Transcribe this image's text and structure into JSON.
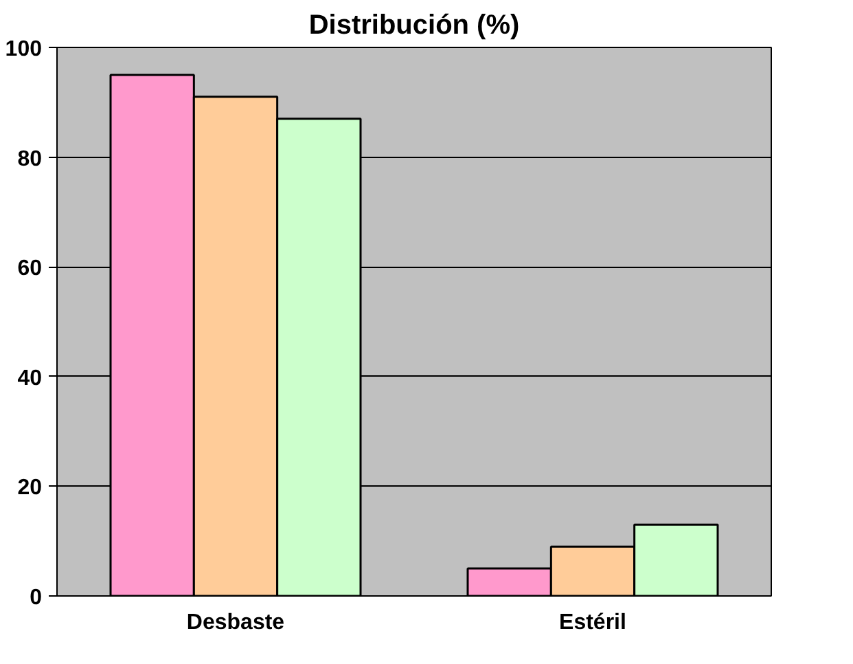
{
  "chart_data": {
    "type": "bar",
    "title": "Distribución (%)",
    "categories": [
      "Desbaste",
      "Estéril"
    ],
    "series": [
      {
        "color": "#ff99cc",
        "values": [
          95,
          5
        ]
      },
      {
        "color": "#ffcc99",
        "values": [
          91,
          9
        ]
      },
      {
        "color": "#ccffcc",
        "values": [
          87,
          13
        ]
      }
    ],
    "ylim": [
      0,
      100
    ],
    "yticks": [
      0,
      20,
      40,
      60,
      80,
      100
    ],
    "grid": "y"
  }
}
